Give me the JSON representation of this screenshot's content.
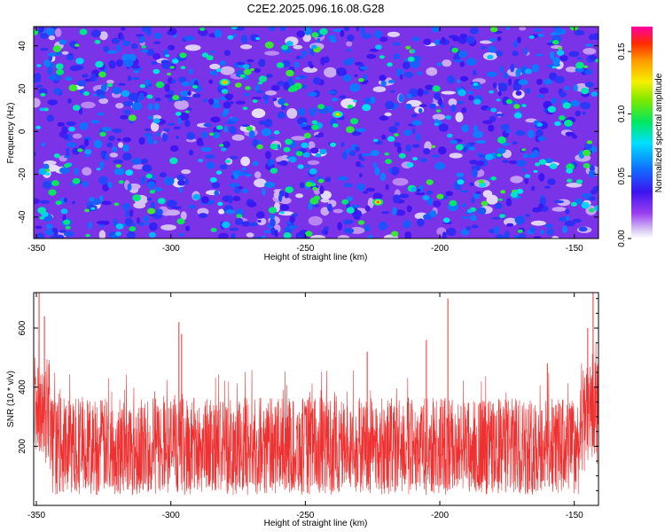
{
  "title": "C2E2.2025.096.16.08.G28",
  "colors": {
    "snr_line": "#ee3030",
    "frame": "#000000"
  },
  "chart_data": [
    {
      "type": "heatmap",
      "title": "C2E2.2025.096.16.08.G28",
      "xlabel": "Height of straight line (km)",
      "ylabel": "Frequency (Hz)",
      "xlim": [
        -351,
        -141
      ],
      "ylim": [
        -50,
        49
      ],
      "x_ticks": [
        -350,
        -300,
        -250,
        -200,
        -150
      ],
      "x_tick_labels": [
        "-350",
        "-300",
        "-250",
        "-200",
        "-150"
      ],
      "y_ticks": [
        -40,
        -20,
        0,
        20,
        40
      ],
      "y_tick_labels": [
        "-40",
        "-20",
        "0",
        "20",
        "40"
      ],
      "grid": false,
      "colorbar": {
        "label": "Normalized spectral amplitude",
        "range": [
          0,
          0.17
        ],
        "colormap": "rainbow (white-purple-blue-cyan-green-yellow-orange-red-magenta)",
        "ticks": [
          0.0,
          0.05,
          0.1,
          0.15
        ],
        "tick_labels": [
          "0.00",
          "0.05",
          "0.10",
          "0.15"
        ]
      },
      "notable_peaks": [
        {
          "x": -280,
          "y": 23,
          "value": 0.14
        },
        {
          "x": -238,
          "y": 8,
          "value": 0.13
        },
        {
          "x": -223,
          "y": -33,
          "value": 0.15
        }
      ],
      "background_level": "mostly 0.02–0.06 (purple/blue) with scattered 0.06–0.10 (cyan/green) blobs"
    },
    {
      "type": "line",
      "xlabel": "Height of straight line (km)",
      "ylabel": "SNR (10 * v/v)",
      "xlim": [
        -351,
        -141
      ],
      "ylim": [
        0,
        720
      ],
      "x_ticks": [
        -350,
        -300,
        -250,
        -200,
        -150
      ],
      "x_tick_labels": [
        "-350",
        "-300",
        "-250",
        "-200",
        "-150"
      ],
      "y_ticks": [
        200,
        400,
        600
      ],
      "y_tick_labels": [
        "200",
        "400",
        "600"
      ],
      "grid": false,
      "series": [
        {
          "color": "#ee3030",
          "description_stats": {
            "baseline_mean": 200,
            "typical_range": [
              50,
              350
            ]
          },
          "peaks": [
            {
              "x": -349,
              "y": 720
            },
            {
              "x": -347,
              "y": 640
            },
            {
              "x": -297,
              "y": 620
            },
            {
              "x": -296,
              "y": 580
            },
            {
              "x": -227,
              "y": 520
            },
            {
              "x": -205,
              "y": 560
            },
            {
              "x": -197,
              "y": 700
            },
            {
              "x": -160,
              "y": 480
            },
            {
              "x": -145,
              "y": 600
            },
            {
              "x": -143,
              "y": 720
            }
          ]
        }
      ]
    }
  ]
}
